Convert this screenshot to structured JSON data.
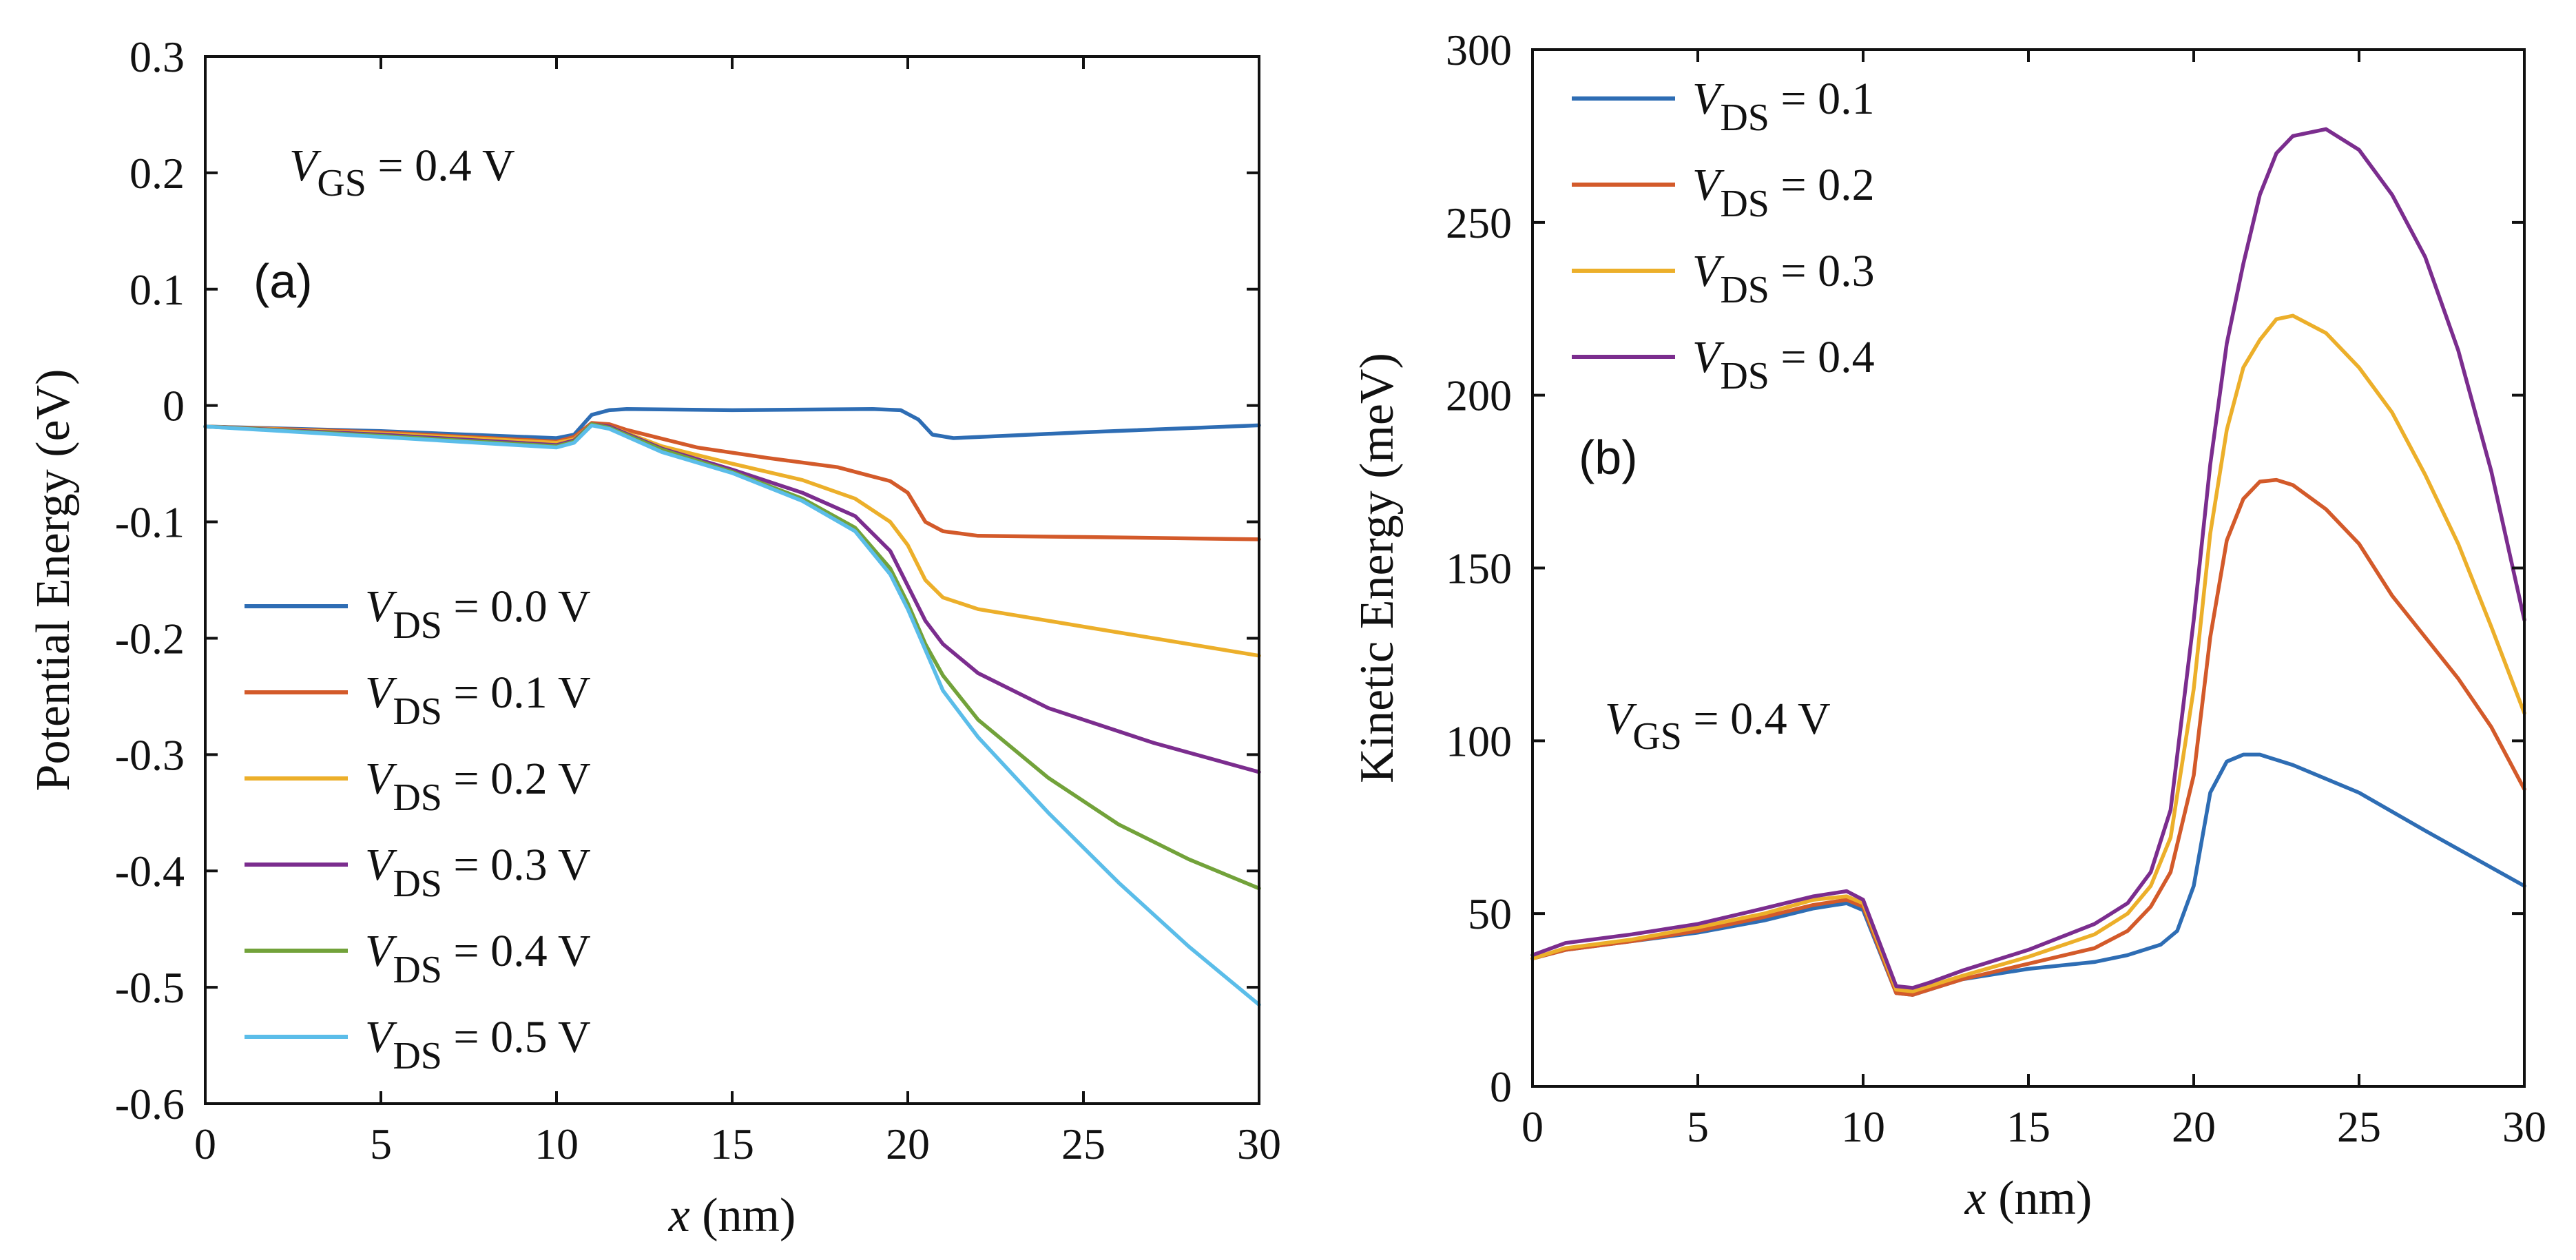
{
  "chart_data": [
    {
      "type": "line",
      "panel_label": "(a)",
      "annotation": {
        "v": "V",
        "sub": "GS",
        "rest": " = 0.4 V"
      },
      "xlabel": {
        "var": "x",
        "unit": " (nm)"
      },
      "ylabel": "Potential Energy (eV)",
      "xlim": [
        0,
        30
      ],
      "ylim": [
        -0.6,
        0.3
      ],
      "xticks": [
        0,
        5,
        10,
        15,
        20,
        25,
        30
      ],
      "yticks": [
        -0.6,
        -0.5,
        -0.4,
        -0.3,
        -0.2,
        -0.1,
        0,
        0.1,
        0.2,
        0.3
      ],
      "ytick_labels": [
        "-0.6",
        "-0.5",
        "-0.4",
        "-0.3",
        "-0.2",
        "-0.1",
        "0",
        "0.1",
        "0.2",
        "0.3"
      ],
      "legend_position": "lower-left",
      "series": [
        {
          "legend_v": "V",
          "legend_sub": "DS",
          "legend_rest": " = 0.0 V",
          "color": "#2e6db4",
          "points": [
            [
              0,
              -0.018
            ],
            [
              5,
              -0.022
            ],
            [
              10,
              -0.028
            ],
            [
              10.5,
              -0.025
            ],
            [
              11,
              -0.008
            ],
            [
              11.5,
              -0.004
            ],
            [
              12,
              -0.003
            ],
            [
              15,
              -0.004
            ],
            [
              19,
              -0.003
            ],
            [
              19.8,
              -0.004
            ],
            [
              20.3,
              -0.012
            ],
            [
              20.7,
              -0.025
            ],
            [
              21.3,
              -0.028
            ],
            [
              25,
              -0.023
            ],
            [
              30,
              -0.017
            ]
          ]
        },
        {
          "legend_v": "V",
          "legend_sub": "DS",
          "legend_rest": " = 0.1 V",
          "color": "#d35a2a",
          "points": [
            [
              0,
              -0.018
            ],
            [
              5,
              -0.023
            ],
            [
              10,
              -0.031
            ],
            [
              10.5,
              -0.027
            ],
            [
              11,
              -0.015
            ],
            [
              11.5,
              -0.016
            ],
            [
              12,
              -0.021
            ],
            [
              14,
              -0.036
            ],
            [
              16,
              -0.045
            ],
            [
              18,
              -0.053
            ],
            [
              19.5,
              -0.065
            ],
            [
              20,
              -0.075
            ],
            [
              20.5,
              -0.1
            ],
            [
              21,
              -0.108
            ],
            [
              22,
              -0.112
            ],
            [
              25,
              -0.113
            ],
            [
              30,
              -0.115
            ]
          ]
        },
        {
          "legend_v": "V",
          "legend_sub": "DS",
          "legend_rest": " = 0.2 V",
          "color": "#ecaf2a",
          "points": [
            [
              0,
              -0.018
            ],
            [
              5,
              -0.024
            ],
            [
              10,
              -0.032
            ],
            [
              10.5,
              -0.029
            ],
            [
              11,
              -0.016
            ],
            [
              11.5,
              -0.018
            ],
            [
              13,
              -0.035
            ],
            [
              15,
              -0.05
            ],
            [
              17,
              -0.064
            ],
            [
              18.5,
              -0.08
            ],
            [
              19.5,
              -0.1
            ],
            [
              20,
              -0.12
            ],
            [
              20.5,
              -0.15
            ],
            [
              21,
              -0.165
            ],
            [
              22,
              -0.175
            ],
            [
              25,
              -0.19
            ],
            [
              30,
              -0.215
            ]
          ]
        },
        {
          "legend_v": "V",
          "legend_sub": "DS",
          "legend_rest": " = 0.3 V",
          "color": "#7b2d8e",
          "points": [
            [
              0,
              -0.018
            ],
            [
              5,
              -0.025
            ],
            [
              10,
              -0.034
            ],
            [
              10.5,
              -0.03
            ],
            [
              11,
              -0.016
            ],
            [
              11.5,
              -0.018
            ],
            [
              13,
              -0.037
            ],
            [
              15,
              -0.055
            ],
            [
              17,
              -0.075
            ],
            [
              18.5,
              -0.095
            ],
            [
              19.5,
              -0.125
            ],
            [
              20,
              -0.155
            ],
            [
              20.5,
              -0.185
            ],
            [
              21,
              -0.205
            ],
            [
              22,
              -0.23
            ],
            [
              24,
              -0.26
            ],
            [
              27,
              -0.29
            ],
            [
              30,
              -0.315
            ]
          ]
        },
        {
          "legend_v": "V",
          "legend_sub": "DS",
          "legend_rest": " = 0.4 V",
          "color": "#72a23a",
          "points": [
            [
              0,
              -0.018
            ],
            [
              5,
              -0.026
            ],
            [
              10,
              -0.035
            ],
            [
              10.5,
              -0.031
            ],
            [
              11,
              -0.016
            ],
            [
              11.5,
              -0.019
            ],
            [
              13,
              -0.038
            ],
            [
              15,
              -0.057
            ],
            [
              17,
              -0.08
            ],
            [
              18.5,
              -0.105
            ],
            [
              19.5,
              -0.14
            ],
            [
              20,
              -0.17
            ],
            [
              20.5,
              -0.205
            ],
            [
              21,
              -0.232
            ],
            [
              22,
              -0.27
            ],
            [
              24,
              -0.32
            ],
            [
              26,
              -0.36
            ],
            [
              28,
              -0.39
            ],
            [
              30,
              -0.415
            ]
          ]
        },
        {
          "legend_v": "V",
          "legend_sub": "DS",
          "legend_rest": " = 0.5 V",
          "color": "#5bbde9",
          "points": [
            [
              0,
              -0.018
            ],
            [
              5,
              -0.027
            ],
            [
              10,
              -0.036
            ],
            [
              10.5,
              -0.032
            ],
            [
              11,
              -0.017
            ],
            [
              11.5,
              -0.02
            ],
            [
              13,
              -0.04
            ],
            [
              15,
              -0.058
            ],
            [
              17,
              -0.082
            ],
            [
              18.5,
              -0.108
            ],
            [
              19.5,
              -0.145
            ],
            [
              20,
              -0.175
            ],
            [
              20.5,
              -0.21
            ],
            [
              21,
              -0.245
            ],
            [
              22,
              -0.285
            ],
            [
              24,
              -0.35
            ],
            [
              26,
              -0.41
            ],
            [
              28,
              -0.465
            ],
            [
              29,
              -0.49
            ],
            [
              30,
              -0.515
            ]
          ]
        }
      ]
    },
    {
      "type": "line",
      "panel_label": "(b)",
      "annotation": {
        "v": "V",
        "sub": "GS",
        "rest": " = 0.4 V"
      },
      "xlabel": {
        "var": "x",
        "unit": " (nm)"
      },
      "ylabel": "Kinetic Energy (meV)",
      "xlim": [
        0,
        30
      ],
      "ylim": [
        0,
        300
      ],
      "xticks": [
        0,
        5,
        10,
        15,
        20,
        25,
        30
      ],
      "yticks": [
        0,
        50,
        100,
        150,
        200,
        250,
        300
      ],
      "ytick_labels": [
        "0",
        "50",
        "100",
        "150",
        "200",
        "250",
        "300"
      ],
      "legend_position": "top-left",
      "series": [
        {
          "legend_v": "V",
          "legend_sub": "DS",
          "legend_rest": " = 0.1",
          "color": "#2e6db4",
          "points": [
            [
              0,
              37
            ],
            [
              1,
              39.5
            ],
            [
              3,
              42
            ],
            [
              5,
              44.5
            ],
            [
              7,
              48
            ],
            [
              8.5,
              51.5
            ],
            [
              9.5,
              53
            ],
            [
              10,
              51
            ],
            [
              11,
              27
            ],
            [
              11.5,
              26.5
            ],
            [
              12,
              28
            ],
            [
              13,
              31
            ],
            [
              15,
              34
            ],
            [
              17,
              36
            ],
            [
              18,
              38
            ],
            [
              19,
              41
            ],
            [
              19.5,
              45
            ],
            [
              20,
              58
            ],
            [
              20.5,
              85
            ],
            [
              21,
              94
            ],
            [
              21.5,
              96
            ],
            [
              22,
              96
            ],
            [
              23,
              93
            ],
            [
              25,
              85
            ],
            [
              27,
              74
            ],
            [
              28.5,
              66
            ],
            [
              30,
              58
            ]
          ]
        },
        {
          "legend_v": "V",
          "legend_sub": "DS",
          "legend_rest": " = 0.2",
          "color": "#d35a2a",
          "points": [
            [
              0,
              37
            ],
            [
              1,
              39.5
            ],
            [
              3,
              42
            ],
            [
              5,
              45
            ],
            [
              7,
              49
            ],
            [
              8.5,
              52.5
            ],
            [
              9.5,
              54
            ],
            [
              10,
              52
            ],
            [
              11,
              27
            ],
            [
              11.5,
              26.5
            ],
            [
              12,
              28
            ],
            [
              13,
              31
            ],
            [
              15,
              35.5
            ],
            [
              17,
              40
            ],
            [
              18,
              45
            ],
            [
              18.7,
              52
            ],
            [
              19.3,
              62
            ],
            [
              20,
              90
            ],
            [
              20.5,
              130
            ],
            [
              21,
              158
            ],
            [
              21.5,
              170
            ],
            [
              22,
              175
            ],
            [
              22.5,
              175.5
            ],
            [
              23,
              174
            ],
            [
              24,
              167
            ],
            [
              25,
              157
            ],
            [
              26,
              142
            ],
            [
              27,
              130
            ],
            [
              28,
              118
            ],
            [
              29,
              104
            ],
            [
              30,
              86
            ]
          ]
        },
        {
          "legend_v": "V",
          "legend_sub": "DS",
          "legend_rest": " = 0.3",
          "color": "#ecaf2a",
          "points": [
            [
              0,
              37
            ],
            [
              1,
              40
            ],
            [
              3,
              42.5
            ],
            [
              5,
              46
            ],
            [
              7,
              50
            ],
            [
              8.5,
              54
            ],
            [
              9.5,
              55
            ],
            [
              10,
              53
            ],
            [
              11,
              28
            ],
            [
              11.5,
              27.5
            ],
            [
              12,
              29
            ],
            [
              13,
              32
            ],
            [
              15,
              37.5
            ],
            [
              17,
              44
            ],
            [
              18,
              50
            ],
            [
              18.7,
              58
            ],
            [
              19.3,
              72
            ],
            [
              20,
              115
            ],
            [
              20.5,
              160
            ],
            [
              21,
              190
            ],
            [
              21.5,
              208
            ],
            [
              22,
              216
            ],
            [
              22.5,
              222
            ],
            [
              23,
              223
            ],
            [
              24,
              218
            ],
            [
              25,
              208
            ],
            [
              26,
              195
            ],
            [
              27,
              177
            ],
            [
              28,
              157
            ],
            [
              29,
              133
            ],
            [
              30,
              108
            ]
          ]
        },
        {
          "legend_v": "V",
          "legend_sub": "DS",
          "legend_rest": " = 0.4",
          "color": "#7b2d8e",
          "points": [
            [
              0,
              38
            ],
            [
              1,
              41.5
            ],
            [
              3,
              44
            ],
            [
              5,
              47
            ],
            [
              7,
              51.5
            ],
            [
              8.5,
              55
            ],
            [
              9.5,
              56.5
            ],
            [
              10,
              54
            ],
            [
              11,
              29
            ],
            [
              11.5,
              28.5
            ],
            [
              12,
              30
            ],
            [
              13,
              33.5
            ],
            [
              15,
              39.5
            ],
            [
              17,
              47
            ],
            [
              18,
              53
            ],
            [
              18.7,
              62
            ],
            [
              19.3,
              80
            ],
            [
              20,
              135
            ],
            [
              20.5,
              180
            ],
            [
              21,
              215
            ],
            [
              21.5,
              238
            ],
            [
              22,
              258
            ],
            [
              22.5,
              270
            ],
            [
              23,
              275
            ],
            [
              24,
              277
            ],
            [
              25,
              271
            ],
            [
              26,
              258
            ],
            [
              27,
              240
            ],
            [
              28,
              213
            ],
            [
              29,
              178
            ],
            [
              30,
              135
            ]
          ]
        }
      ]
    }
  ]
}
